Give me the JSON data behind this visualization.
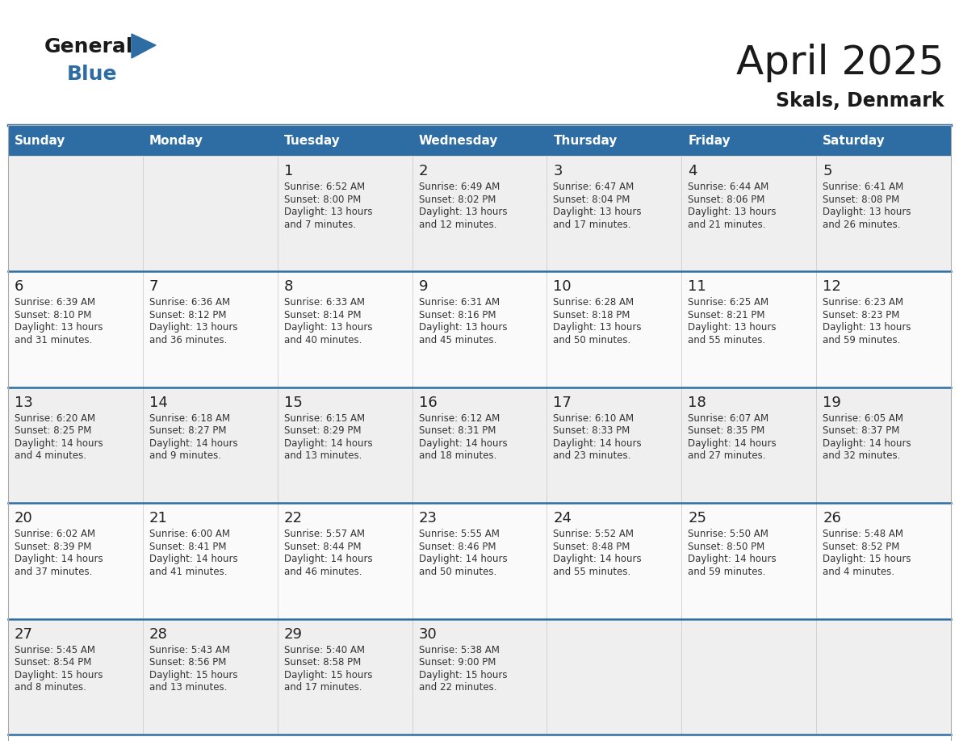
{
  "title": "April 2025",
  "subtitle": "Skals, Denmark",
  "header_bg": "#2E6DA4",
  "header_text_color": "#FFFFFF",
  "day_names": [
    "Sunday",
    "Monday",
    "Tuesday",
    "Wednesday",
    "Thursday",
    "Friday",
    "Saturday"
  ],
  "title_color": "#1a1a1a",
  "subtitle_color": "#1a1a1a",
  "number_color": "#222222",
  "text_color": "#333333",
  "cell_bg_odd": "#EFEFEF",
  "cell_bg_even": "#FAFAFA",
  "divider_color": "#2E6DA4",
  "logo_general_color": "#1a1a1a",
  "logo_blue_color": "#2E6DA4",
  "logo_triangle_color": "#2E6DA4",
  "days": [
    {
      "date": 1,
      "col": 2,
      "row": 0,
      "sunrise": "6:52 AM",
      "sunset": "8:00 PM",
      "daylight_h": "13 hours",
      "daylight_m": "7 minutes"
    },
    {
      "date": 2,
      "col": 3,
      "row": 0,
      "sunrise": "6:49 AM",
      "sunset": "8:02 PM",
      "daylight_h": "13 hours",
      "daylight_m": "12 minutes"
    },
    {
      "date": 3,
      "col": 4,
      "row": 0,
      "sunrise": "6:47 AM",
      "sunset": "8:04 PM",
      "daylight_h": "13 hours",
      "daylight_m": "17 minutes"
    },
    {
      "date": 4,
      "col": 5,
      "row": 0,
      "sunrise": "6:44 AM",
      "sunset": "8:06 PM",
      "daylight_h": "13 hours",
      "daylight_m": "21 minutes"
    },
    {
      "date": 5,
      "col": 6,
      "row": 0,
      "sunrise": "6:41 AM",
      "sunset": "8:08 PM",
      "daylight_h": "13 hours",
      "daylight_m": "26 minutes"
    },
    {
      "date": 6,
      "col": 0,
      "row": 1,
      "sunrise": "6:39 AM",
      "sunset": "8:10 PM",
      "daylight_h": "13 hours",
      "daylight_m": "31 minutes"
    },
    {
      "date": 7,
      "col": 1,
      "row": 1,
      "sunrise": "6:36 AM",
      "sunset": "8:12 PM",
      "daylight_h": "13 hours",
      "daylight_m": "36 minutes"
    },
    {
      "date": 8,
      "col": 2,
      "row": 1,
      "sunrise": "6:33 AM",
      "sunset": "8:14 PM",
      "daylight_h": "13 hours",
      "daylight_m": "40 minutes"
    },
    {
      "date": 9,
      "col": 3,
      "row": 1,
      "sunrise": "6:31 AM",
      "sunset": "8:16 PM",
      "daylight_h": "13 hours",
      "daylight_m": "45 minutes"
    },
    {
      "date": 10,
      "col": 4,
      "row": 1,
      "sunrise": "6:28 AM",
      "sunset": "8:18 PM",
      "daylight_h": "13 hours",
      "daylight_m": "50 minutes"
    },
    {
      "date": 11,
      "col": 5,
      "row": 1,
      "sunrise": "6:25 AM",
      "sunset": "8:21 PM",
      "daylight_h": "13 hours",
      "daylight_m": "55 minutes"
    },
    {
      "date": 12,
      "col": 6,
      "row": 1,
      "sunrise": "6:23 AM",
      "sunset": "8:23 PM",
      "daylight_h": "13 hours",
      "daylight_m": "59 minutes"
    },
    {
      "date": 13,
      "col": 0,
      "row": 2,
      "sunrise": "6:20 AM",
      "sunset": "8:25 PM",
      "daylight_h": "14 hours",
      "daylight_m": "4 minutes"
    },
    {
      "date": 14,
      "col": 1,
      "row": 2,
      "sunrise": "6:18 AM",
      "sunset": "8:27 PM",
      "daylight_h": "14 hours",
      "daylight_m": "9 minutes"
    },
    {
      "date": 15,
      "col": 2,
      "row": 2,
      "sunrise": "6:15 AM",
      "sunset": "8:29 PM",
      "daylight_h": "14 hours",
      "daylight_m": "13 minutes"
    },
    {
      "date": 16,
      "col": 3,
      "row": 2,
      "sunrise": "6:12 AM",
      "sunset": "8:31 PM",
      "daylight_h": "14 hours",
      "daylight_m": "18 minutes"
    },
    {
      "date": 17,
      "col": 4,
      "row": 2,
      "sunrise": "6:10 AM",
      "sunset": "8:33 PM",
      "daylight_h": "14 hours",
      "daylight_m": "23 minutes"
    },
    {
      "date": 18,
      "col": 5,
      "row": 2,
      "sunrise": "6:07 AM",
      "sunset": "8:35 PM",
      "daylight_h": "14 hours",
      "daylight_m": "27 minutes"
    },
    {
      "date": 19,
      "col": 6,
      "row": 2,
      "sunrise": "6:05 AM",
      "sunset": "8:37 PM",
      "daylight_h": "14 hours",
      "daylight_m": "32 minutes"
    },
    {
      "date": 20,
      "col": 0,
      "row": 3,
      "sunrise": "6:02 AM",
      "sunset": "8:39 PM",
      "daylight_h": "14 hours",
      "daylight_m": "37 minutes"
    },
    {
      "date": 21,
      "col": 1,
      "row": 3,
      "sunrise": "6:00 AM",
      "sunset": "8:41 PM",
      "daylight_h": "14 hours",
      "daylight_m": "41 minutes"
    },
    {
      "date": 22,
      "col": 2,
      "row": 3,
      "sunrise": "5:57 AM",
      "sunset": "8:44 PM",
      "daylight_h": "14 hours",
      "daylight_m": "46 minutes"
    },
    {
      "date": 23,
      "col": 3,
      "row": 3,
      "sunrise": "5:55 AM",
      "sunset": "8:46 PM",
      "daylight_h": "14 hours",
      "daylight_m": "50 minutes"
    },
    {
      "date": 24,
      "col": 4,
      "row": 3,
      "sunrise": "5:52 AM",
      "sunset": "8:48 PM",
      "daylight_h": "14 hours",
      "daylight_m": "55 minutes"
    },
    {
      "date": 25,
      "col": 5,
      "row": 3,
      "sunrise": "5:50 AM",
      "sunset": "8:50 PM",
      "daylight_h": "14 hours",
      "daylight_m": "59 minutes"
    },
    {
      "date": 26,
      "col": 6,
      "row": 3,
      "sunrise": "5:48 AM",
      "sunset": "8:52 PM",
      "daylight_h": "15 hours",
      "daylight_m": "4 minutes"
    },
    {
      "date": 27,
      "col": 0,
      "row": 4,
      "sunrise": "5:45 AM",
      "sunset": "8:54 PM",
      "daylight_h": "15 hours",
      "daylight_m": "8 minutes"
    },
    {
      "date": 28,
      "col": 1,
      "row": 4,
      "sunrise": "5:43 AM",
      "sunset": "8:56 PM",
      "daylight_h": "15 hours",
      "daylight_m": "13 minutes"
    },
    {
      "date": 29,
      "col": 2,
      "row": 4,
      "sunrise": "5:40 AM",
      "sunset": "8:58 PM",
      "daylight_h": "15 hours",
      "daylight_m": "17 minutes"
    },
    {
      "date": 30,
      "col": 3,
      "row": 4,
      "sunrise": "5:38 AM",
      "sunset": "9:00 PM",
      "daylight_h": "15 hours",
      "daylight_m": "22 minutes"
    }
  ]
}
